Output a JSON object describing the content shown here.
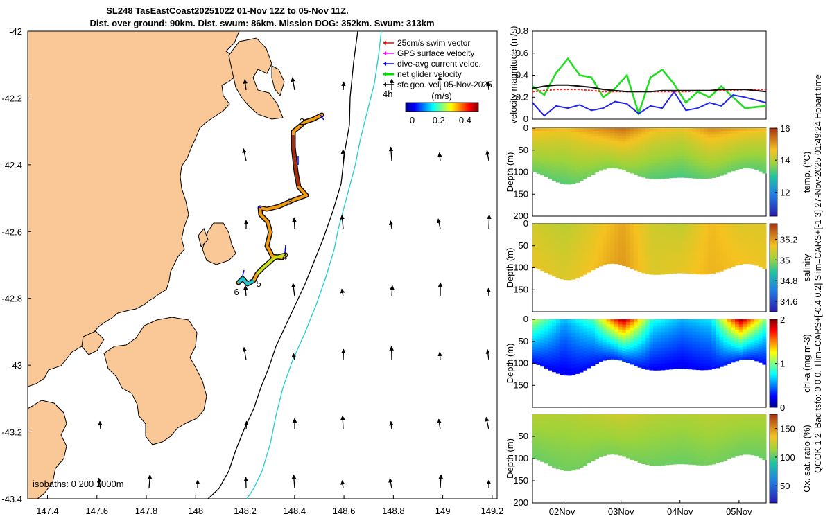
{
  "figure": {
    "title_line1": "SL248 TasEastCoast20251022 01-Nov 12Z to 05-Nov 11Z.",
    "title_line2": "Dist. over ground: 90km. Dist. swum: 86km. Mission DOG: 352km. Swum: 313km",
    "side_note": "QCOK 1  2. Bad tsfo: 0  0  0. Tlim=CARS+[-0.4 0.2] Slim=CARS+[-1 3] 27-Nov-2025 01:49:24 Hobart time"
  },
  "map": {
    "xlim": [
      147.32,
      149.22
    ],
    "ylim": [
      -43.4,
      -42.0
    ],
    "x_ticks": [
      "147.4",
      "147.6",
      "147.8",
      "148",
      "148.2",
      "148.4",
      "148.6",
      "148.8",
      "149",
      "149.2"
    ],
    "x_tick_values": [
      147.4,
      147.6,
      147.8,
      148.0,
      148.2,
      148.4,
      148.6,
      148.8,
      149.0,
      149.2
    ],
    "y_ticks": [
      "-42",
      "-42.2",
      "-42.4",
      "-42.6",
      "-42.8",
      "-43",
      "-43.2",
      "-43.4"
    ],
    "y_tick_values": [
      -42.0,
      -42.2,
      -42.4,
      -42.6,
      -42.8,
      -43.0,
      -43.2,
      -43.4
    ],
    "legend": [
      {
        "label": "25cm/s swim vector",
        "color": "#ff0000"
      },
      {
        "label": "GPS surface velocity",
        "color": "#ff00ff"
      },
      {
        "label": "dive-avg current veloc.",
        "color": "#0000ff"
      },
      {
        "label": "net glider velocity",
        "color": "#00dd00"
      },
      {
        "label": "sfc geo. vel. 05-Nov-2025",
        "color": "#000000"
      }
    ],
    "arrow_scale_label": "4h",
    "colorbar": {
      "label": "(m/s)",
      "ticks": [
        "0",
        "0.2",
        "0.4"
      ],
      "tick_values": [
        0,
        0.2,
        0.4
      ],
      "range": [
        -0.05,
        0.5
      ]
    },
    "isobaths_label": "isobaths: 0   200  1000m",
    "day_markers": [
      {
        "label": "2",
        "lon": 148.43,
        "lat": -42.28
      },
      {
        "label": "3",
        "lon": 148.38,
        "lat": -42.52
      },
      {
        "label": "4",
        "lon": 148.36,
        "lat": -42.685
      },
      {
        "label": "5",
        "lon": 148.255,
        "lat": -42.765
      },
      {
        "label": "6",
        "lon": 148.165,
        "lat": -42.79
      }
    ]
  },
  "chart_data": [
    {
      "type": "line",
      "name": "velocity magnitude",
      "ylabel": "velocity magnitude (m/s)",
      "ylim": [
        0,
        0.8
      ],
      "y_ticks": [
        "0",
        "0.2",
        "0.4",
        "0.6",
        "0.8"
      ],
      "y_tick_values": [
        0,
        0.2,
        0.4,
        0.6,
        0.8
      ],
      "x_days": [
        0.0,
        0.2,
        0.4,
        0.6,
        0.8,
        1.0,
        1.2,
        1.4,
        1.6,
        1.8,
        2.0,
        2.2,
        2.4,
        2.6,
        2.8,
        3.0,
        3.2,
        3.4,
        3.6,
        3.96
      ],
      "series": [
        {
          "name": "net glider velocity",
          "color": "#22dd22",
          "values": [
            0.3,
            0.22,
            0.42,
            0.55,
            0.4,
            0.38,
            0.2,
            0.28,
            0.4,
            0.05,
            0.38,
            0.45,
            0.32,
            0.15,
            0.25,
            0.2,
            0.3,
            0.2,
            0.1,
            0.12
          ]
        },
        {
          "name": "dive-avg current veloc.",
          "color": "#2222ee",
          "values": [
            0.15,
            0.03,
            0.12,
            0.1,
            0.13,
            0.08,
            0.1,
            0.16,
            0.14,
            0.05,
            0.12,
            0.1,
            0.25,
            0.08,
            0.1,
            0.15,
            0.12,
            0.22,
            0.2,
            0.15
          ]
        },
        {
          "name": "25cm/s swim vector",
          "color": "#ff2222",
          "values": [
            0.25,
            0.26,
            0.27,
            0.27,
            0.27,
            0.26,
            0.25,
            0.25,
            0.25,
            0.25,
            0.25,
            0.25,
            0.25,
            0.25,
            0.26,
            0.26,
            0.26,
            0.26,
            0.27,
            0.27
          ]
        },
        {
          "name": "sfc geo. vel.",
          "color": "#111111",
          "values": [
            0.28,
            0.3,
            0.31,
            0.31,
            0.3,
            0.29,
            0.27,
            0.26,
            0.25,
            0.25,
            0.25,
            0.26,
            0.26,
            0.26,
            0.26,
            0.26,
            0.27,
            0.27,
            0.27,
            0.25
          ]
        }
      ]
    },
    {
      "type": "heatmap",
      "name": "temperature",
      "ylabel": "Depth (m)",
      "clabel": "temp. (°C)",
      "clim": [
        10.5,
        16
      ],
      "cticks": [
        "12",
        "14",
        "16"
      ],
      "ctick_values": [
        12,
        14,
        16
      ],
      "depth_ticks": [
        "0",
        "50",
        "100",
        "150",
        "200"
      ],
      "depth_tick_values": [
        0,
        50,
        100,
        150,
        200
      ],
      "days": [
        0,
        0.5,
        1.0,
        1.5,
        2.0,
        2.5,
        3.0,
        3.5,
        3.96
      ],
      "surface_values": [
        14.8,
        14.6,
        15.0,
        15.4,
        14.7,
        14.5,
        15.1,
        14.8,
        14.6
      ],
      "deep_values": [
        13.4,
        13.3,
        13.5,
        13.6,
        13.3,
        13.2,
        13.4,
        13.4,
        13.3
      ]
    },
    {
      "type": "heatmap",
      "name": "salinity",
      "ylabel": "Depth (m)",
      "clabel": "salinity",
      "clim": [
        34.5,
        35.35
      ],
      "cticks": [
        "34.6",
        "34.8",
        "35",
        "35.2"
      ],
      "ctick_values": [
        34.6,
        34.8,
        35.0,
        35.2
      ],
      "depth_ticks": [
        "0",
        "50",
        "100",
        "150"
      ],
      "depth_tick_values": [
        0,
        50,
        100,
        150
      ],
      "days": [
        0,
        0.5,
        1.0,
        1.5,
        2.0,
        2.5,
        3.0,
        3.5,
        3.96
      ],
      "surface_values": [
        35.08,
        35.05,
        35.1,
        35.18,
        35.08,
        35.06,
        35.15,
        35.1,
        35.1
      ],
      "deep_values": [
        35.12,
        35.1,
        35.14,
        35.2,
        35.1,
        35.12,
        35.16,
        35.14,
        35.12
      ]
    },
    {
      "type": "heatmap",
      "name": "chlorophyll-a",
      "ylabel": "Depth (m)",
      "clabel": "chl-a (mg m-3)",
      "clim": [
        0,
        2
      ],
      "cticks": [
        "0",
        "1",
        "2"
      ],
      "ctick_values": [
        0,
        1,
        2
      ],
      "depth_ticks": [
        "0",
        "50",
        "100",
        "150"
      ],
      "depth_tick_values": [
        0,
        50,
        100,
        150
      ],
      "days": [
        0,
        0.5,
        1.0,
        1.5,
        2.0,
        2.5,
        3.0,
        3.5,
        3.96
      ],
      "surface_values": [
        1.1,
        0.6,
        0.9,
        1.9,
        0.8,
        0.6,
        0.7,
        1.9,
        0.9
      ],
      "deep_values": [
        0.25,
        0.2,
        0.25,
        0.3,
        0.22,
        0.2,
        0.25,
        0.28,
        0.22
      ]
    },
    {
      "type": "heatmap",
      "name": "oxygen saturation",
      "ylabel": "Depth (m)",
      "clabel": "Ox. sat. ratio (%)",
      "clim": [
        20,
        175
      ],
      "cticks": [
        "50",
        "100",
        "150"
      ],
      "ctick_values": [
        50,
        100,
        150
      ],
      "depth_ticks": [
        "50",
        "100",
        "150",
        "200"
      ],
      "depth_tick_values": [
        50,
        100,
        150,
        200
      ],
      "x_ticks": [
        "02Nov",
        "03Nov",
        "04Nov",
        "05Nov"
      ],
      "x_tick_days": [
        0.5,
        1.5,
        2.5,
        3.5
      ],
      "days": [
        0,
        0.5,
        1.0,
        1.5,
        2.0,
        2.5,
        3.0,
        3.5,
        3.96
      ],
      "surface_values": [
        120,
        118,
        122,
        126,
        120,
        118,
        121,
        119,
        118
      ],
      "deep_values": [
        103,
        104,
        105,
        106,
        104,
        103,
        105,
        104,
        103
      ]
    }
  ]
}
